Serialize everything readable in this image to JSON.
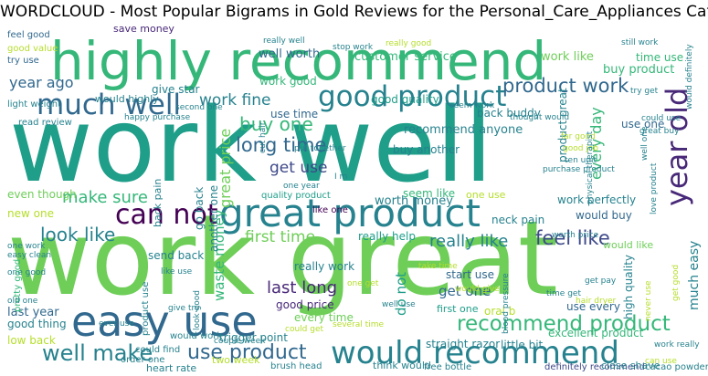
{
  "title": "WORDCLOUD - Most Popular Bigrams in Gold Reviews for the Personal_Care_Appliances Category",
  "colors": {
    "yellow_green": "#b5de2b",
    "light_green": "#6ece58",
    "green": "#35b779",
    "teal_green": "#1f9e89",
    "teal": "#26828e",
    "blue": "#31688e",
    "indigo": "#3e4989",
    "purple": "#482878",
    "dark_purple": "#440154"
  },
  "words": [
    {
      "text": "work well",
      "color": "teal_green"
    },
    {
      "text": "work great",
      "color": "light_green"
    },
    {
      "text": "highly recommend",
      "color": "green"
    },
    {
      "text": "great product",
      "color": "teal"
    },
    {
      "text": "easy use",
      "color": "blue"
    },
    {
      "text": "would recommend",
      "color": "teal"
    },
    {
      "text": "good product",
      "color": "teal"
    },
    {
      "text": "much well",
      "color": "blue"
    },
    {
      "text": "can not",
      "color": "dark_purple"
    },
    {
      "text": "year old",
      "color": "purple"
    },
    {
      "text": "product work",
      "color": "blue"
    },
    {
      "text": "recommend product",
      "color": "green"
    },
    {
      "text": "well make",
      "color": "teal"
    },
    {
      "text": "use product",
      "color": "blue"
    },
    {
      "text": "long time",
      "color": "blue"
    },
    {
      "text": "buy one",
      "color": "green"
    },
    {
      "text": "look like",
      "color": "teal"
    },
    {
      "text": "feel like",
      "color": "indigo"
    },
    {
      "text": "make sure",
      "color": "green"
    },
    {
      "text": "really like",
      "color": "teal"
    },
    {
      "text": "get use",
      "color": "indigo"
    },
    {
      "text": "first time",
      "color": "light_green"
    },
    {
      "text": "last long",
      "color": "purple"
    },
    {
      "text": "year ago",
      "color": "blue"
    },
    {
      "text": "work fine",
      "color": "teal"
    },
    {
      "text": "great price",
      "color": "light_green"
    },
    {
      "text": "waste money",
      "color": "green"
    },
    {
      "text": "every day",
      "color": "green"
    },
    {
      "text": "customer service",
      "color": "green"
    },
    {
      "text": "well worth",
      "color": "blue"
    },
    {
      "text": "work like",
      "color": "light_green"
    },
    {
      "text": "buy product",
      "color": "green"
    },
    {
      "text": "time use",
      "color": "green"
    },
    {
      "text": "give star",
      "color": "teal"
    },
    {
      "text": "good quality",
      "color": "teal_green"
    },
    {
      "text": "work good",
      "color": "green"
    },
    {
      "text": "use time",
      "color": "blue"
    },
    {
      "text": "recommend anyone",
      "color": "teal"
    },
    {
      "text": "buy another",
      "color": "teal"
    },
    {
      "text": "back buddy",
      "color": "teal"
    },
    {
      "text": "worth money",
      "color": "teal"
    },
    {
      "text": "really help",
      "color": "teal_green"
    },
    {
      "text": "work perfectly",
      "color": "teal"
    },
    {
      "text": "would buy",
      "color": "blue"
    },
    {
      "text": "really work",
      "color": "teal"
    },
    {
      "text": "good price",
      "color": "purple"
    },
    {
      "text": "every time",
      "color": "light_green"
    },
    {
      "text": "get one",
      "color": "blue"
    },
    {
      "text": "do not",
      "color": "teal_green"
    },
    {
      "text": "oral b",
      "color": "yellow_green"
    },
    {
      "text": "use every",
      "color": "blue"
    },
    {
      "text": "high quality",
      "color": "teal"
    },
    {
      "text": "much easy",
      "color": "teal"
    },
    {
      "text": "trigger point",
      "color": "teal"
    },
    {
      "text": "last year",
      "color": "blue"
    },
    {
      "text": "good thing",
      "color": "teal"
    },
    {
      "text": "low back",
      "color": "yellow_green"
    },
    {
      "text": "even though",
      "color": "light_green"
    },
    {
      "text": "new one",
      "color": "yellow_green"
    },
    {
      "text": "send back",
      "color": "teal"
    },
    {
      "text": "start use",
      "color": "blue"
    },
    {
      "text": "first one",
      "color": "teal_green"
    },
    {
      "text": "little bit",
      "color": "teal"
    },
    {
      "text": "straight razor",
      "color": "teal"
    },
    {
      "text": "excellent product",
      "color": "green"
    },
    {
      "text": "definitely recommend",
      "color": "indigo"
    },
    {
      "text": "close shave",
      "color": "teal"
    },
    {
      "text": "think would",
      "color": "teal"
    },
    {
      "text": "heart rate",
      "color": "teal"
    },
    {
      "text": "brush head",
      "color": "teal"
    },
    {
      "text": "two week",
      "color": "yellow_green"
    },
    {
      "text": "free bottle",
      "color": "teal"
    },
    {
      "text": "cacao powder",
      "color": "teal"
    },
    {
      "text": "couple week",
      "color": "teal"
    },
    {
      "text": "would work",
      "color": "teal"
    },
    {
      "text": "could find",
      "color": "teal"
    },
    {
      "text": "order one",
      "color": "teal"
    },
    {
      "text": "seem like",
      "color": "green"
    },
    {
      "text": "one use",
      "color": "yellow_green"
    },
    {
      "text": "like one",
      "color": "dark_purple"
    },
    {
      "text": "quality product",
      "color": "teal_green"
    },
    {
      "text": "neck pain",
      "color": "teal"
    },
    {
      "text": "go back",
      "color": "teal"
    },
    {
      "text": "another one",
      "color": "teal"
    },
    {
      "text": "back pain",
      "color": "teal"
    },
    {
      "text": "product great",
      "color": "teal"
    },
    {
      "text": "use one",
      "color": "blue"
    },
    {
      "text": "save money",
      "color": "purple"
    },
    {
      "text": "feel good",
      "color": "blue"
    },
    {
      "text": "good value",
      "color": "yellow_green"
    },
    {
      "text": "try use",
      "color": "blue"
    },
    {
      "text": "light weight",
      "color": "teal"
    },
    {
      "text": "would highly",
      "color": "teal"
    },
    {
      "text": "read review",
      "color": "teal"
    },
    {
      "text": "happy purchase",
      "color": "teal"
    },
    {
      "text": "second one",
      "color": "teal"
    },
    {
      "text": "seem work",
      "color": "teal"
    },
    {
      "text": "really well",
      "color": "teal"
    },
    {
      "text": "stop work",
      "color": "teal"
    },
    {
      "text": "really good",
      "color": "yellow_green"
    },
    {
      "text": "still work",
      "color": "teal"
    },
    {
      "text": "thought would",
      "color": "teal"
    },
    {
      "text": "try get",
      "color": "teal"
    },
    {
      "text": "would definitely",
      "color": "teal"
    },
    {
      "text": "great buy",
      "color": "teal"
    },
    {
      "text": "could use",
      "color": "teal"
    },
    {
      "text": "far good",
      "color": "yellow_green"
    },
    {
      "text": "good job",
      "color": "yellow_green"
    },
    {
      "text": "ten unit",
      "color": "teal"
    },
    {
      "text": "physical therapist",
      "color": "teal"
    },
    {
      "text": "well one",
      "color": "teal"
    },
    {
      "text": "love product",
      "color": "teal"
    },
    {
      "text": "purchase product",
      "color": "teal"
    },
    {
      "text": "worth price",
      "color": "teal"
    },
    {
      "text": "would like",
      "color": "light_green"
    },
    {
      "text": "put together",
      "color": "teal"
    },
    {
      "text": "cut hair",
      "color": "teal"
    },
    {
      "text": "one year",
      "color": "teal"
    },
    {
      "text": "I m",
      "color": "teal"
    },
    {
      "text": "one work",
      "color": "teal"
    },
    {
      "text": "easy clean",
      "color": "teal"
    },
    {
      "text": "one good",
      "color": "teal"
    },
    {
      "text": "like use",
      "color": "teal"
    },
    {
      "text": "ever use",
      "color": "teal"
    },
    {
      "text": "pretty good",
      "color": "green"
    },
    {
      "text": "product use",
      "color": "teal"
    },
    {
      "text": "give try",
      "color": "teal"
    },
    {
      "text": "look good",
      "color": "teal"
    },
    {
      "text": "could get",
      "color": "yellow_green"
    },
    {
      "text": "old one",
      "color": "teal"
    },
    {
      "text": "well use",
      "color": "teal"
    },
    {
      "text": "one get",
      "color": "yellow_green"
    },
    {
      "text": "take time",
      "color": "yellow_green"
    },
    {
      "text": "would give",
      "color": "yellow_green"
    },
    {
      "text": "get pay",
      "color": "teal"
    },
    {
      "text": "hair dryer",
      "color": "yellow_green"
    },
    {
      "text": "time get",
      "color": "teal"
    },
    {
      "text": "blood pressure",
      "color": "teal"
    },
    {
      "text": "several time",
      "color": "yellow_green"
    },
    {
      "text": "never use",
      "color": "yellow_green"
    },
    {
      "text": "get good",
      "color": "yellow_green"
    },
    {
      "text": "work really",
      "color": "teal"
    },
    {
      "text": "can use",
      "color": "yellow_green"
    }
  ]
}
